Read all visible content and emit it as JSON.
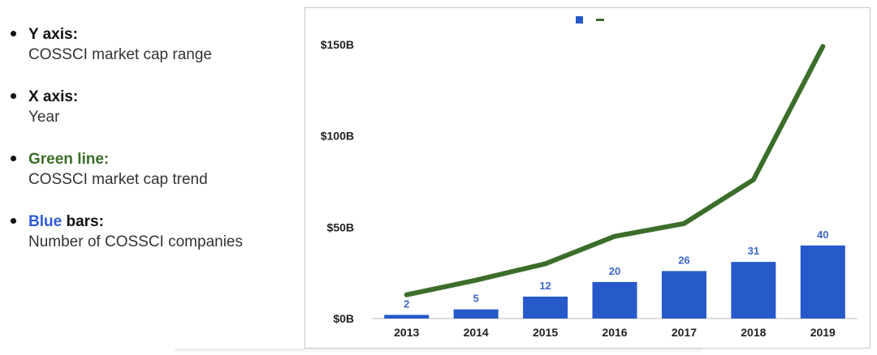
{
  "legend": {
    "items": [
      {
        "head": "Y axis:",
        "head_color": "#111111",
        "desc": "COSSCI market cap range"
      },
      {
        "head": "X axis:",
        "head_color": "#111111",
        "desc": "Year"
      },
      {
        "head": "Green line:",
        "head_color": "#3b6e2a",
        "desc": "COSSCI market cap trend"
      },
      {
        "head_colored": "Blue",
        "head_colored_color": "#2f5bd3",
        "head": " bars:",
        "head_color": "#111111",
        "desc": "Number of COSSCI companies"
      }
    ]
  },
  "chart_data": {
    "type": "bar",
    "categories": [
      "2013",
      "2014",
      "2015",
      "2016",
      "2017",
      "2018",
      "2019"
    ],
    "series": [
      {
        "type": "bar",
        "values": [
          2,
          5,
          12,
          20,
          26,
          31,
          40
        ],
        "color": "#2659c9"
      },
      {
        "type": "line",
        "values": [
          13,
          21,
          30,
          45,
          52,
          76,
          149
        ],
        "color": "#3b6e2a"
      }
    ],
    "y_ticks": [
      "$0B",
      "$50B",
      "$100B",
      "$150B"
    ],
    "ylim": [
      0,
      150
    ],
    "grid": false,
    "legend_position": "top-center"
  }
}
